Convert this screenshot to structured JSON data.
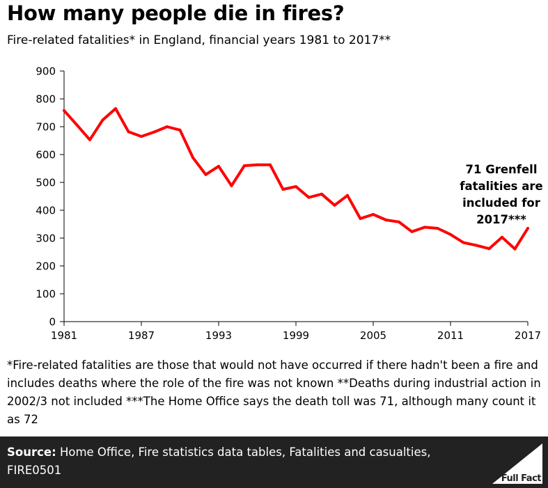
{
  "header": {
    "title": "How many people die in fires?",
    "subtitle": "Fire-related fatalities* in England, financial years 1981 to 2017**"
  },
  "chart_data": {
    "type": "line",
    "title": "How many people die in fires?",
    "subtitle": "Fire-related fatalities* in England, financial years 1981 to 2017**",
    "xlabel": "",
    "ylabel": "",
    "xlim": [
      1981,
      2017
    ],
    "ylim": [
      0,
      900
    ],
    "x_ticks": [
      "1981",
      "1987",
      "1993",
      "1999",
      "2005",
      "2011",
      "2017"
    ],
    "y_ticks": [
      "0",
      "100",
      "200",
      "300",
      "400",
      "500",
      "600",
      "700",
      "800",
      "900"
    ],
    "grid": false,
    "line_color": "#ff0000",
    "x": [
      1981,
      1982,
      1983,
      1984,
      1985,
      1986,
      1987,
      1988,
      1989,
      1990,
      1991,
      1992,
      1993,
      1994,
      1995,
      1996,
      1997,
      1998,
      1999,
      2000,
      2001,
      2002,
      2003,
      2004,
      2005,
      2006,
      2007,
      2008,
      2009,
      2010,
      2011,
      2012,
      2013,
      2014,
      2015,
      2016,
      2017
    ],
    "values": [
      758,
      706,
      653,
      724,
      765,
      682,
      665,
      681,
      700,
      688,
      589,
      528,
      558,
      488,
      560,
      563,
      563,
      475,
      485,
      446,
      458,
      418,
      453,
      370,
      385,
      365,
      358,
      323,
      339,
      335,
      313,
      284,
      274,
      262,
      303,
      261,
      335
    ],
    "annotation": {
      "text_lines": [
        "71 Grenfell",
        "fatalities are",
        "included for",
        "2017***"
      ]
    }
  },
  "notes": {
    "text": "*Fire-related fatalities are those that would not have occurred if there hadn't been a fire and includes deaths where the role of the fire was not known **Deaths during industrial action in 2002/3 not included ***The Home Office says the death toll was 71, although many count it as 72"
  },
  "footer": {
    "source_label": "Source:",
    "source_text": "Home Office, Fire statistics data tables, Fatalities and casualties, FIRE0501",
    "logo_text": "Full Fact",
    "background": "#222222"
  }
}
